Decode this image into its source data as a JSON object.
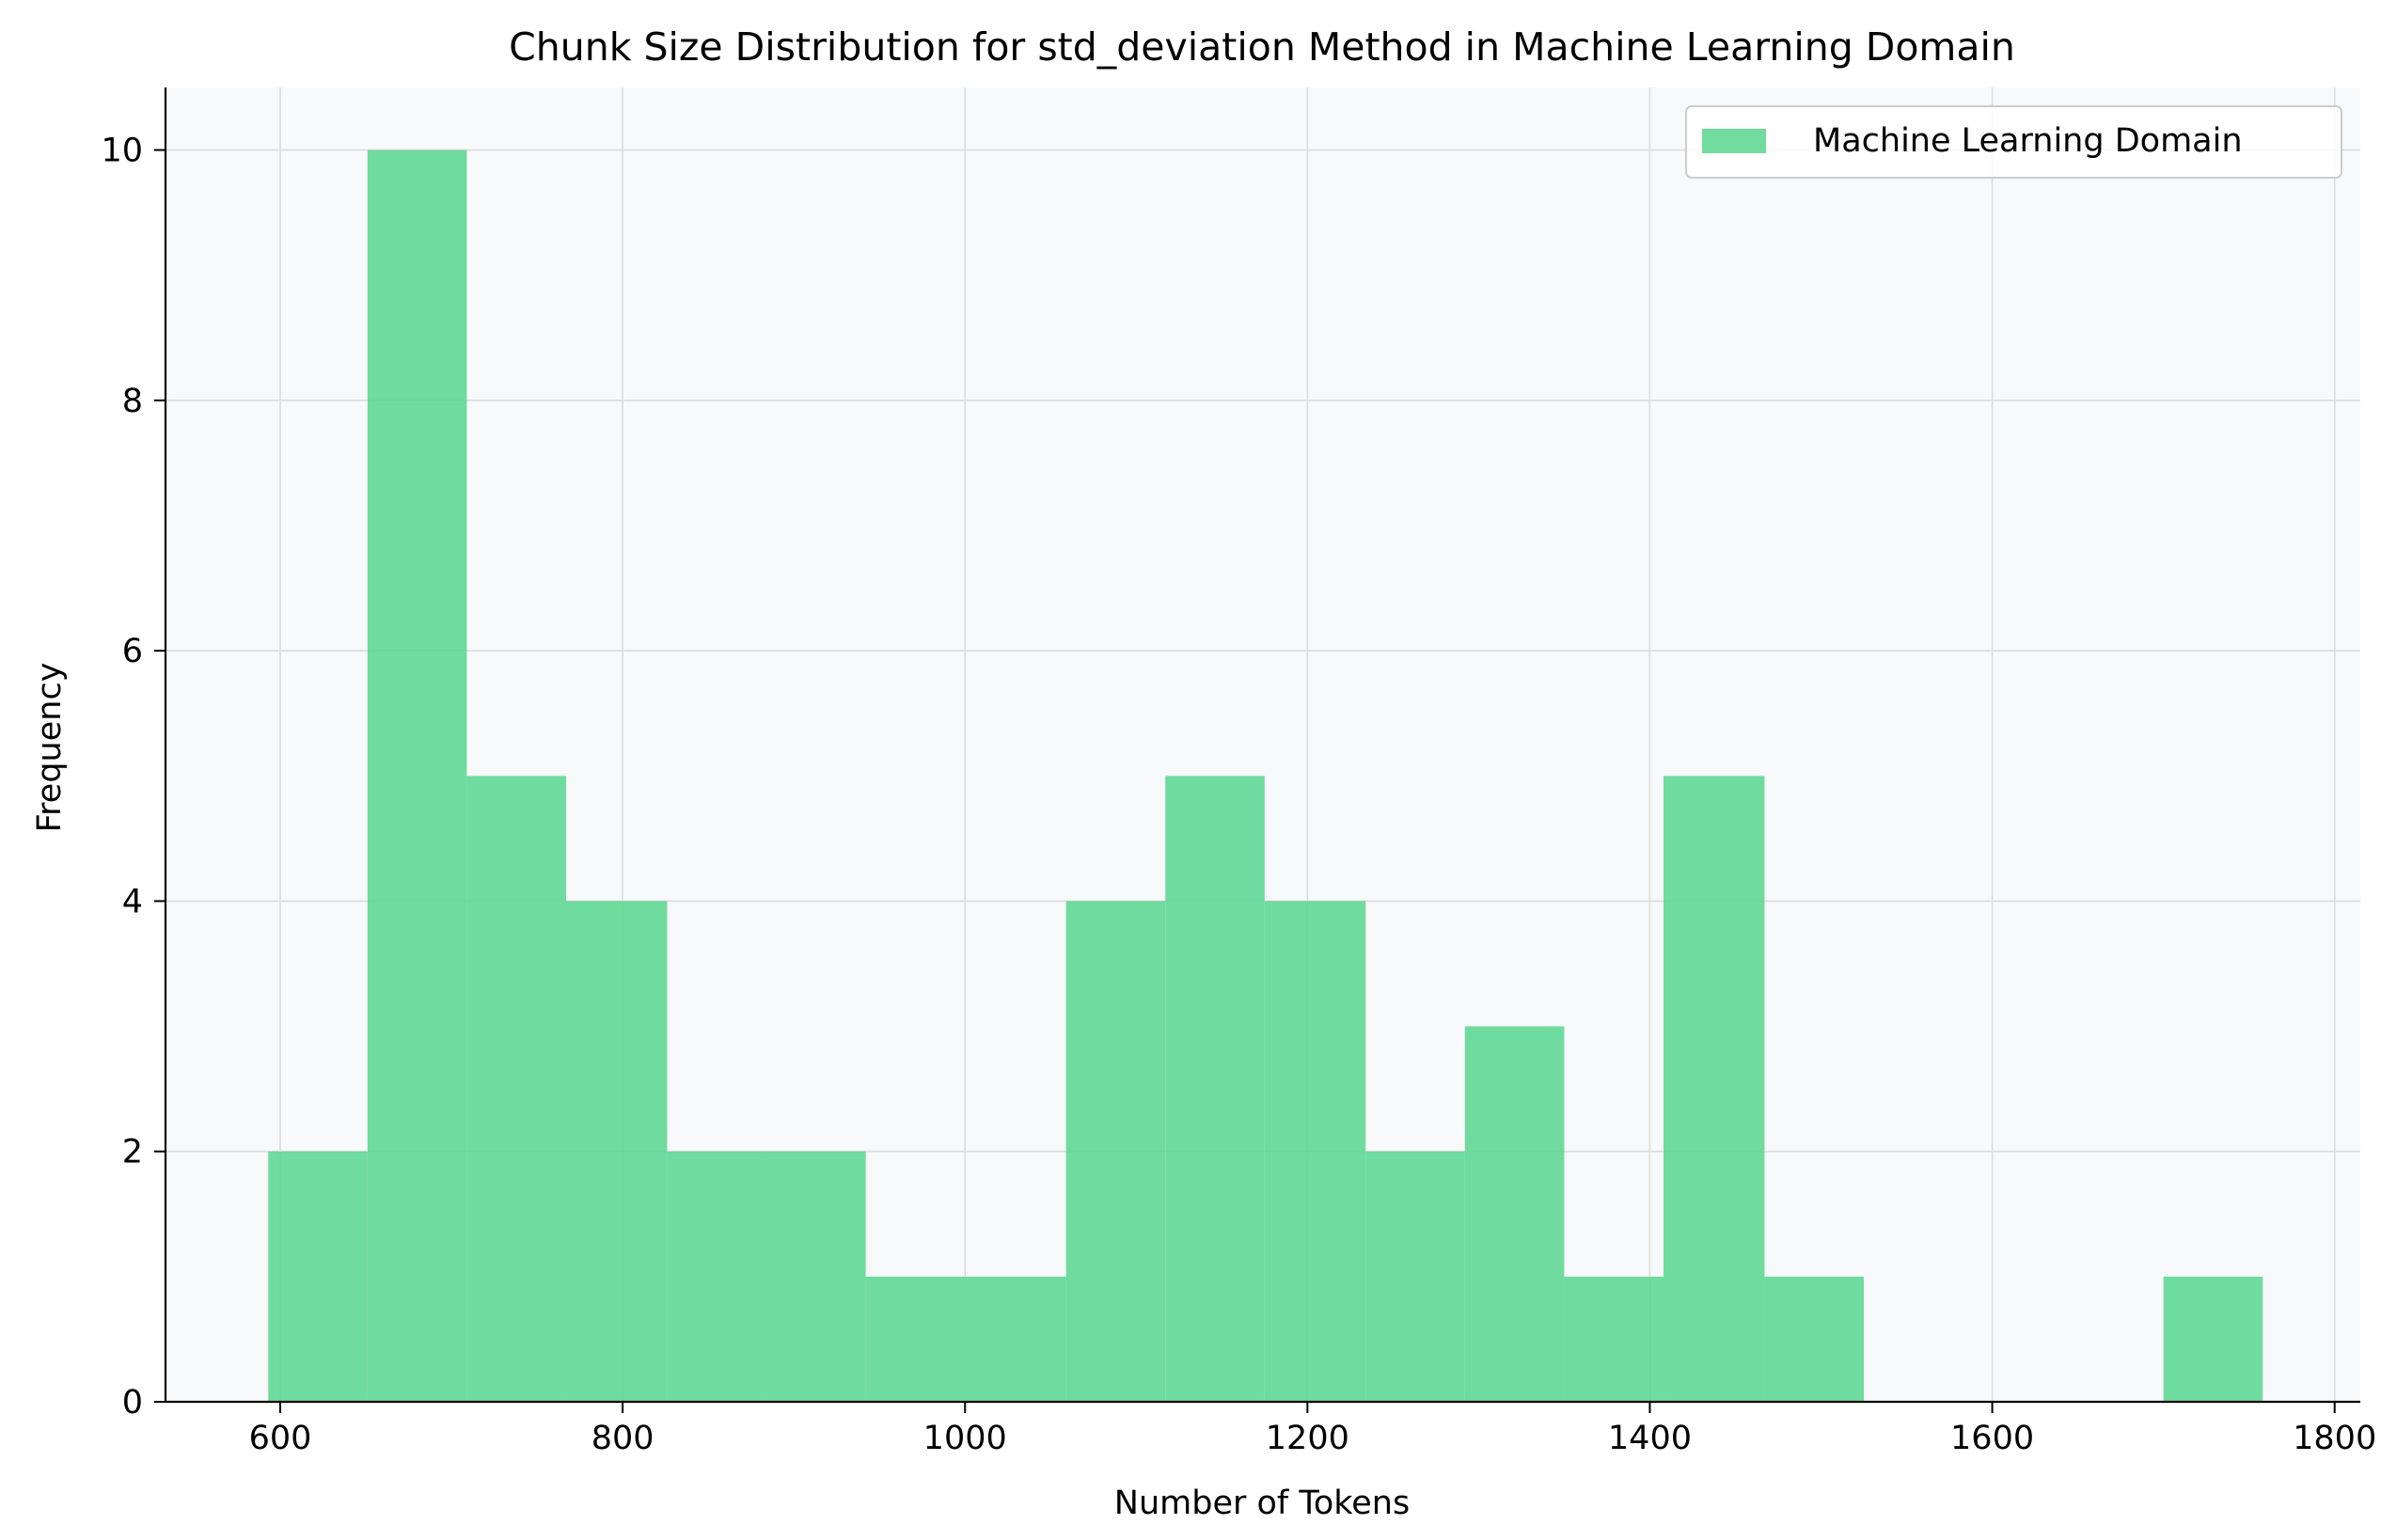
{
  "chart_data": {
    "type": "bar",
    "title": "Chunk Size Distribution for std_deviation Method in Machine Learning Domain",
    "xlabel": "Number of Tokens",
    "ylabel": "Frequency",
    "xlim": [
      533,
      1815
    ],
    "ylim": [
      0,
      10.5
    ],
    "xticks": [
      600,
      800,
      1000,
      1200,
      1400,
      1600,
      1800
    ],
    "yticks": [
      0,
      2,
      4,
      6,
      8,
      10
    ],
    "grid": true,
    "legend_position": "top-right",
    "series": [
      {
        "name": "Machine Learning Domain",
        "color": "#58d68d",
        "bins": [
          {
            "x0": 593,
            "x1": 651,
            "count": 2
          },
          {
            "x0": 651,
            "x1": 709,
            "count": 10
          },
          {
            "x0": 709,
            "x1": 767,
            "count": 5
          },
          {
            "x0": 767,
            "x1": 826,
            "count": 4
          },
          {
            "x0": 826,
            "x1": 884,
            "count": 2
          },
          {
            "x0": 884,
            "x1": 942,
            "count": 2
          },
          {
            "x0": 942,
            "x1": 1000,
            "count": 1
          },
          {
            "x0": 1000,
            "x1": 1059,
            "count": 1
          },
          {
            "x0": 1059,
            "x1": 1117,
            "count": 4
          },
          {
            "x0": 1117,
            "x1": 1175,
            "count": 5
          },
          {
            "x0": 1175,
            "x1": 1234,
            "count": 4
          },
          {
            "x0": 1234,
            "x1": 1292,
            "count": 2
          },
          {
            "x0": 1292,
            "x1": 1350,
            "count": 3
          },
          {
            "x0": 1350,
            "x1": 1408,
            "count": 1
          },
          {
            "x0": 1408,
            "x1": 1467,
            "count": 5
          },
          {
            "x0": 1467,
            "x1": 1525,
            "count": 1
          },
          {
            "x0": 1525,
            "x1": 1583,
            "count": 0
          },
          {
            "x0": 1583,
            "x1": 1641,
            "count": 0
          },
          {
            "x0": 1641,
            "x1": 1700,
            "count": 0
          },
          {
            "x0": 1700,
            "x1": 1758,
            "count": 1
          }
        ]
      }
    ]
  },
  "colors": {
    "plot_background": "#f8f9fb",
    "grid": "#dcdcdc",
    "axis": "#000000"
  }
}
